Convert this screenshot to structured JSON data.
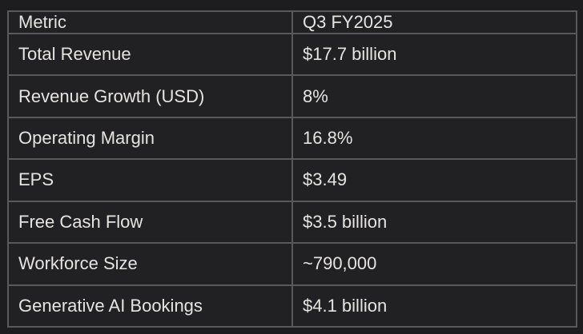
{
  "chart_data": {
    "type": "table",
    "columns": [
      "Metric",
      "Q3 FY2025"
    ],
    "rows": [
      [
        "Total Revenue",
        "$17.7 billion"
      ],
      [
        "Revenue Growth (USD)",
        "8%"
      ],
      [
        "Operating Margin",
        "16.8%"
      ],
      [
        "EPS",
        "$3.49"
      ],
      [
        "Free Cash Flow",
        "$3.5 billion"
      ],
      [
        "Workforce Size",
        "~790,000"
      ],
      [
        "Generative AI Bookings",
        "$4.1 billion"
      ]
    ],
    "layout": {
      "grid": "on",
      "header_row": true
    }
  },
  "colors": {
    "bg": "#1d1d1f",
    "cell_bg": "#212123",
    "border": "#59595b",
    "text": "#e6e4e1"
  }
}
